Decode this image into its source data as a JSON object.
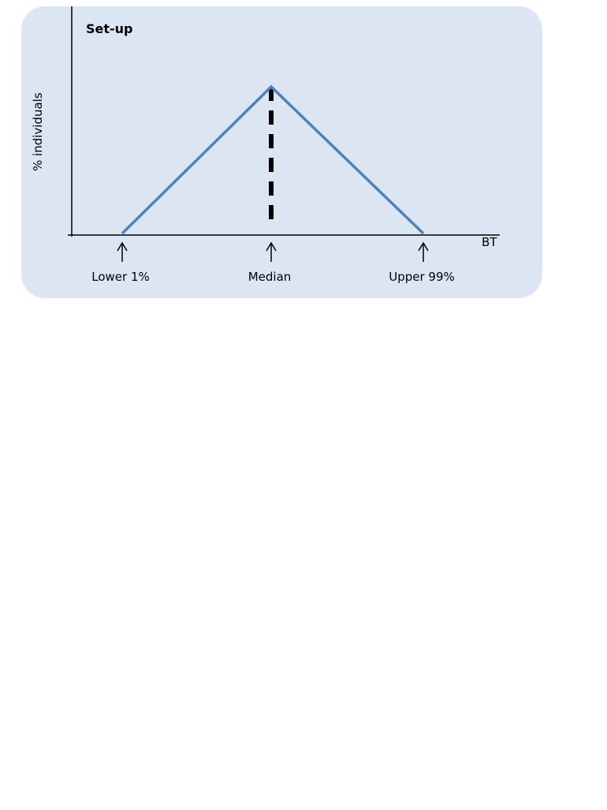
{
  "panel": {
    "title": "Set-up",
    "background_color": "#dce6f2"
  },
  "chart_data": {
    "type": "line",
    "title": "Set-up",
    "xlabel": "BT",
    "ylabel": "% individuals",
    "grid": false,
    "series": [
      {
        "points": [
          {
            "x": "Lower 1%",
            "y": 0
          },
          {
            "x": "Median",
            "y": 1
          },
          {
            "x": "Upper 99%",
            "y": 0
          }
        ],
        "color": "#4f81bd"
      }
    ],
    "reference_line": {
      "at": "Median",
      "style": "dashed",
      "color": "#000000"
    },
    "markers": [
      {
        "label": "Lower 1%"
      },
      {
        "label": "Median"
      },
      {
        "label": "Upper 99%"
      }
    ]
  }
}
